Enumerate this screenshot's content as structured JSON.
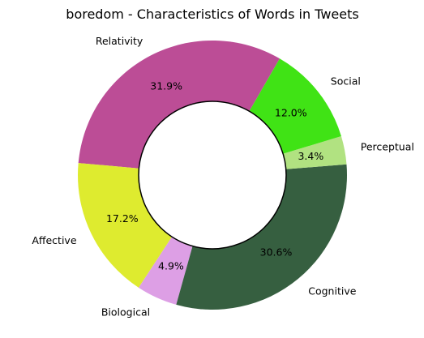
{
  "chart_data": {
    "type": "pie",
    "title": "boredom - Characteristics of Words in Tweets",
    "donut": true,
    "start_angle_deg": 60,
    "direction": "counterclockwise",
    "slices": [
      {
        "label": "Relativity",
        "value": 31.9,
        "pct_text": "31.9%",
        "color": "#bc4d96"
      },
      {
        "label": "Affective",
        "value": 17.2,
        "pct_text": "17.2%",
        "color": "#deeb2f"
      },
      {
        "label": "Biological",
        "value": 4.9,
        "pct_text": "4.9%",
        "color": "#dd9fe5"
      },
      {
        "label": "Cognitive",
        "value": 30.6,
        "pct_text": "30.6%",
        "color": "#365f40"
      },
      {
        "label": "Perceptual",
        "value": 3.4,
        "pct_text": "3.4%",
        "color": "#b1e281"
      },
      {
        "label": "Social",
        "value": 12.0,
        "pct_text": "12.0%",
        "color": "#40e315"
      }
    ]
  }
}
